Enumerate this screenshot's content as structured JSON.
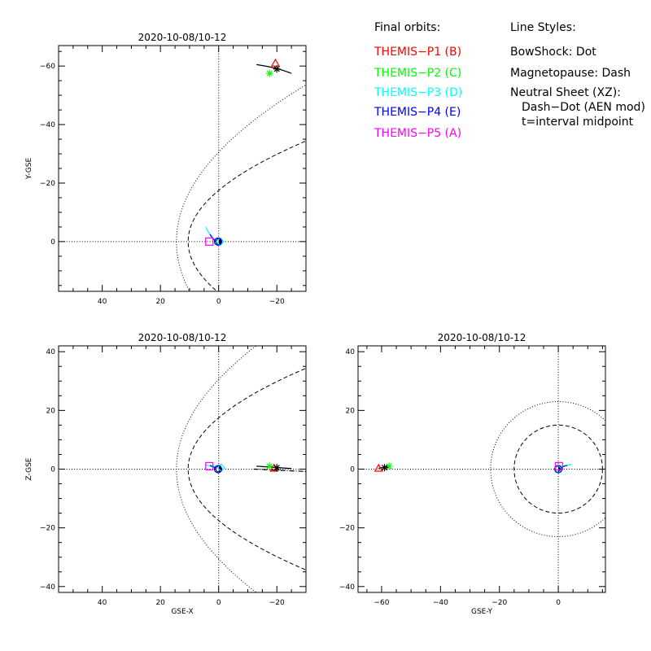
{
  "panels": {
    "xy": {
      "title": "2020-10-08/10-12",
      "ylabel": "Y-GSE",
      "xlim": [
        55,
        -30
      ],
      "ylim": [
        17,
        -67
      ],
      "xticks": [
        40,
        20,
        0,
        -20
      ],
      "xtick_labels": [
        "40",
        "20",
        "0",
        "−20"
      ],
      "yticks": [
        -60,
        -40,
        -20,
        0
      ],
      "ytick_labels": [
        "−60",
        "−40",
        "−20",
        "0"
      ]
    },
    "xz": {
      "title": "2020-10-08/10-12",
      "xlabel": "GSE-X",
      "ylabel": "Z-GSE",
      "xlim": [
        55,
        -30
      ],
      "ylim": [
        -42,
        42
      ],
      "xticks": [
        40,
        20,
        0,
        -20
      ],
      "xtick_labels": [
        "40",
        "20",
        "0",
        "−20"
      ],
      "yticks": [
        -40,
        -20,
        0,
        20,
        40
      ],
      "ytick_labels": [
        "−40",
        "−20",
        "0",
        "20",
        "40"
      ]
    },
    "yz": {
      "title": "2020-10-08/10-12",
      "xlabel": "GSE-Y",
      "xlim": [
        -68,
        16
      ],
      "ylim": [
        -42,
        42
      ],
      "xticks": [
        -60,
        -40,
        -20,
        0
      ],
      "xtick_labels": [
        "−60",
        "−40",
        "−20",
        "0"
      ],
      "yticks": [
        -40,
        -20,
        0,
        20,
        40
      ],
      "ytick_labels": [
        "−40",
        "−20",
        "0",
        "20",
        "40"
      ]
    }
  },
  "legend": {
    "orbits_title": "Final orbits:",
    "probes": [
      {
        "label": "THEMIS−P1 (B)",
        "color": "#ff0000"
      },
      {
        "label": "THEMIS−P2 (C)",
        "color": "#00ff00"
      },
      {
        "label": "THEMIS−P3 (D)",
        "color": "#00ffff"
      },
      {
        "label": "THEMIS−P4 (E)",
        "color": "#0000ff"
      },
      {
        "label": "THEMIS−P5 (A)",
        "color": "#ff00ff"
      }
    ],
    "styles_title": "Line Styles:",
    "bowshock": "BowShock: Dot",
    "magnetopause": "Magnetopause: Dash",
    "neutral_sheet": "Neutral Sheet (XZ):",
    "neutral_sheet_model": "Dash−Dot (AEN mod)",
    "midpoint": "t=interval midpoint"
  },
  "positions": {
    "P1": {
      "xy": [
        -19.5,
        -61
      ],
      "xz": [
        -19,
        0.3
      ],
      "yz": [
        -61,
        0.3
      ],
      "color": "#ff0000",
      "marker": "triangle"
    },
    "P2": {
      "xy": [
        -17.5,
        -57.5
      ],
      "xz": [
        -17.5,
        1
      ],
      "yz": [
        -57.5,
        1
      ],
      "color": "#00ff00",
      "marker": "asterisk"
    },
    "P3": {
      "xy": [
        -0.5,
        0
      ],
      "xz": [
        -0.8,
        0.5
      ],
      "yz": [
        0,
        0
      ],
      "color": "#00ffff",
      "marker": "diamond"
    },
    "P4": {
      "xy": [
        0.2,
        0
      ],
      "xz": [
        0.2,
        0
      ],
      "yz": [
        0,
        0
      ],
      "color": "#0000ff",
      "marker": "circle"
    },
    "P5": {
      "xy": [
        3.2,
        0
      ],
      "xz": [
        3.2,
        1
      ],
      "yz": [
        0.2,
        1
      ],
      "color": "#ff00ff",
      "marker": "square"
    },
    "ARTEMIS": {
      "xy": [
        -20,
        -59
      ],
      "xz": [
        -20,
        0.5
      ],
      "yz": [
        -59,
        0.5
      ],
      "color": "#000000",
      "marker": "asterisk"
    }
  },
  "boundaries": {
    "bowshock": {
      "standoff": 14.5,
      "flaring": 0.5
    },
    "magnetopause": {
      "standoff": 10.5,
      "flaring": 0.8
    }
  }
}
